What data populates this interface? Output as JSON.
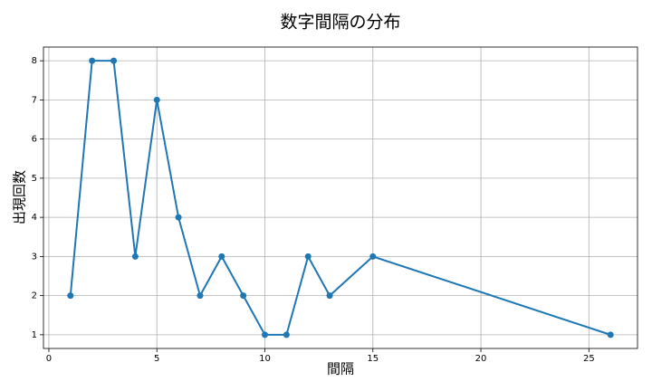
{
  "chart_data": {
    "type": "line",
    "title": "数字間隔の分布",
    "x_label": "間隔",
    "y_label": "出現回数",
    "x": [
      1,
      2,
      3,
      4,
      5,
      6,
      7,
      8,
      9,
      10,
      11,
      12,
      13,
      15,
      26
    ],
    "series": [
      {
        "name": "出現回数",
        "color": "#1f77b4",
        "values": [
          2,
          8,
          8,
          3,
          7,
          4,
          2,
          3,
          2,
          1,
          1,
          3,
          2,
          3,
          1
        ]
      }
    ],
    "xlim": [
      -0.25,
      27.25
    ],
    "xticks": [
      0,
      5,
      10,
      15,
      20,
      25
    ],
    "ylim": [
      0.65,
      8.35
    ],
    "yticks": [
      1,
      2,
      3,
      4,
      5,
      6,
      7,
      8
    ],
    "grid": true,
    "markers": true
  }
}
